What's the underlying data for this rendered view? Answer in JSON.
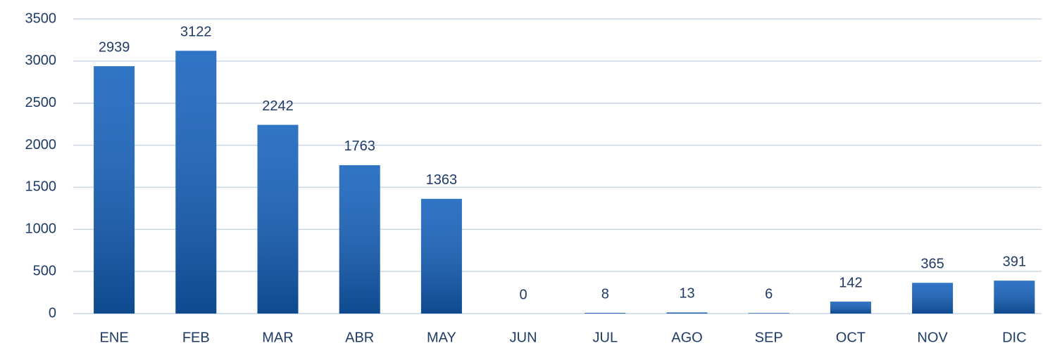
{
  "chart_data": {
    "type": "bar",
    "categories": [
      "ENE",
      "FEB",
      "MAR",
      "ABR",
      "MAY",
      "JUN",
      "JUL",
      "AGO",
      "SEP",
      "OCT",
      "NOV",
      "DIC"
    ],
    "values": [
      2939,
      3122,
      2242,
      1763,
      1363,
      0,
      8,
      13,
      6,
      142,
      365,
      391
    ],
    "color": "#1461bd",
    "ylim": [
      0,
      3500
    ],
    "yticks": [
      0,
      500,
      1000,
      1500,
      2000,
      2500,
      3000,
      3500
    ],
    "grid": true
  }
}
